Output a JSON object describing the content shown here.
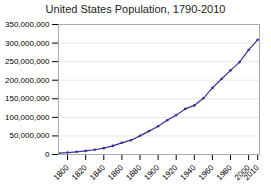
{
  "chart_data": {
    "type": "line",
    "title": "United States Population, 1790-2010",
    "x": [
      1790,
      1800,
      1810,
      1820,
      1830,
      1840,
      1850,
      1860,
      1870,
      1880,
      1890,
      1900,
      1910,
      1920,
      1930,
      1940,
      1950,
      1960,
      1970,
      1980,
      1990,
      2000,
      2010
    ],
    "values": [
      3929214,
      5308483,
      7239881,
      9638453,
      12866020,
      17069453,
      23191876,
      31443321,
      38558371,
      50189209,
      62979766,
      76212168,
      92228496,
      106021537,
      122775046,
      132164569,
      151325798,
      179323175,
      203211926,
      226545805,
      248709873,
      281421906,
      308745538
    ],
    "color": "#333399",
    "marker": "circle",
    "xlim": [
      1790,
      2012
    ],
    "xticks": [
      1800,
      1820,
      1840,
      1860,
      1880,
      1900,
      1920,
      1940,
      1960,
      1980,
      2000,
      2010
    ],
    "ylim": [
      0,
      350000000
    ],
    "yticks": [
      0,
      {
        "value": 50000000,
        "label": "50,000,000"
      },
      {
        "value": 100000000,
        "label": "100,000,000"
      },
      {
        "value": 150000000,
        "label": "150,000,000"
      },
      {
        "value": 200000000,
        "label": "200,000,000"
      },
      {
        "value": 250000000,
        "label": "250,000,000"
      },
      {
        "value": 300000000,
        "label": "300,000,000"
      },
      {
        "value": 350000000,
        "label": "350,000,000"
      }
    ],
    "grid": "y"
  }
}
